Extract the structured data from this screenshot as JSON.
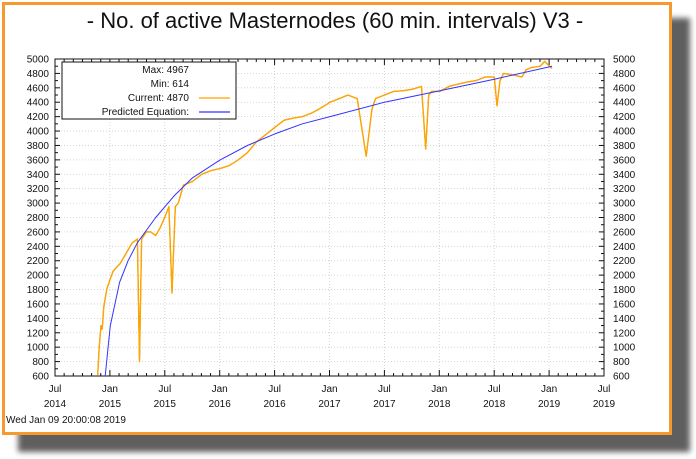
{
  "title": "- No. of active Masternodes (60 min. intervals) V3 -",
  "timestamp": "Wed Jan 09 20:00:08 2019",
  "colors": {
    "frame_border": "#f59a2e",
    "series_current": "#ffa500",
    "series_predicted": "#3333ff",
    "series_trend": "#333333",
    "grid": "#cccccc"
  },
  "legend": {
    "max_label": "Max: 4967",
    "min_label": "Min: 614",
    "current_label": "Current: 4870",
    "predicted_label": "Predicted Equation:"
  },
  "chart_data": {
    "type": "line",
    "title": "- No. of active Masternodes (60 min. intervals) V3 -",
    "xlabel": "",
    "ylabel": "",
    "ylim": [
      600,
      5000
    ],
    "xlim": [
      "2014-07",
      "2019-07"
    ],
    "grid": true,
    "legend_position": "top-left",
    "y_ticks": [
      600,
      800,
      1000,
      1200,
      1400,
      1600,
      1800,
      2000,
      2200,
      2400,
      2600,
      2800,
      3000,
      3200,
      3400,
      3600,
      3800,
      4000,
      4200,
      4400,
      4600,
      4800,
      5000
    ],
    "x_ticks": [
      {
        "line1": "Jul",
        "line2": "2014"
      },
      {
        "line1": "Jan",
        "line2": "2015"
      },
      {
        "line1": "Jul",
        "line2": "2015"
      },
      {
        "line1": "Jan",
        "line2": "2016"
      },
      {
        "line1": "Jul",
        "line2": "2016"
      },
      {
        "line1": "Jan",
        "line2": "2017"
      },
      {
        "line1": "Jul",
        "line2": "2017"
      },
      {
        "line1": "Jan",
        "line2": "2018"
      },
      {
        "line1": "Jul",
        "line2": "2018"
      },
      {
        "line1": "Jan",
        "line2": "2019"
      },
      {
        "line1": "Jul",
        "line2": "2019"
      }
    ],
    "stats": {
      "max": 4967,
      "min": 614,
      "current": 4870
    },
    "series": [
      {
        "name": "Current",
        "color": "#ffa500",
        "x": [
          "2014-11-20",
          "2014-11-25",
          "2014-12-01",
          "2014-12-05",
          "2014-12-10",
          "2014-12-20",
          "2015-01-01",
          "2015-01-10",
          "2015-01-20",
          "2015-02-01",
          "2015-02-15",
          "2015-03-01",
          "2015-03-15",
          "2015-04-01",
          "2015-04-08",
          "2015-04-15",
          "2015-05-01",
          "2015-05-15",
          "2015-06-01",
          "2015-06-15",
          "2015-07-01",
          "2015-07-15",
          "2015-07-25",
          "2015-08-05",
          "2015-08-15",
          "2015-09-01",
          "2015-10-01",
          "2015-11-01",
          "2015-12-01",
          "2016-01-01",
          "2016-02-01",
          "2016-03-01",
          "2016-04-01",
          "2016-05-01",
          "2016-06-01",
          "2016-07-01",
          "2016-08-01",
          "2016-09-01",
          "2016-10-01",
          "2016-11-01",
          "2016-12-01",
          "2017-01-01",
          "2017-02-01",
          "2017-03-01",
          "2017-04-01",
          "2017-05-01",
          "2017-05-20",
          "2017-06-01",
          "2017-07-01",
          "2017-08-01",
          "2017-09-01",
          "2017-10-01",
          "2017-11-01",
          "2017-11-15",
          "2017-11-25",
          "2017-12-05",
          "2018-01-01",
          "2018-02-01",
          "2018-03-01",
          "2018-04-01",
          "2018-05-01",
          "2018-06-01",
          "2018-07-01",
          "2018-07-10",
          "2018-07-20",
          "2018-08-01",
          "2018-09-01",
          "2018-10-01",
          "2018-10-15",
          "2018-11-01",
          "2018-12-01",
          "2018-12-15",
          "2019-01-01",
          "2019-01-09"
        ],
        "values": [
          614,
          1000,
          1300,
          1250,
          1550,
          1800,
          1950,
          2050,
          2100,
          2150,
          2250,
          2350,
          2450,
          2500,
          800,
          2500,
          2600,
          2600,
          2550,
          2650,
          2800,
          2950,
          1750,
          2950,
          3000,
          3250,
          3300,
          3400,
          3450,
          3480,
          3520,
          3600,
          3700,
          3850,
          3950,
          4050,
          4150,
          4180,
          4200,
          4250,
          4320,
          4400,
          4450,
          4500,
          4450,
          3650,
          4300,
          4450,
          4500,
          4550,
          4560,
          4580,
          4620,
          3750,
          4500,
          4550,
          4550,
          4620,
          4650,
          4680,
          4700,
          4750,
          4750,
          4350,
          4700,
          4800,
          4780,
          4750,
          4850,
          4880,
          4900,
          4967,
          4900,
          4870
        ]
      },
      {
        "name": "Predicted Equation",
        "color": "#3333ff",
        "x": [
          "2014-12-15",
          "2015-01-01",
          "2015-02-01",
          "2015-03-01",
          "2015-04-01",
          "2015-06-01",
          "2015-08-01",
          "2015-10-01",
          "2016-01-01",
          "2016-04-01",
          "2016-07-01",
          "2016-10-01",
          "2017-01-01",
          "2017-07-01",
          "2018-01-01",
          "2018-07-01",
          "2019-01-09"
        ],
        "values": [
          600,
          1300,
          1900,
          2200,
          2450,
          2800,
          3100,
          3350,
          3600,
          3800,
          3960,
          4100,
          4200,
          4400,
          4560,
          4720,
          4900
        ]
      }
    ]
  }
}
